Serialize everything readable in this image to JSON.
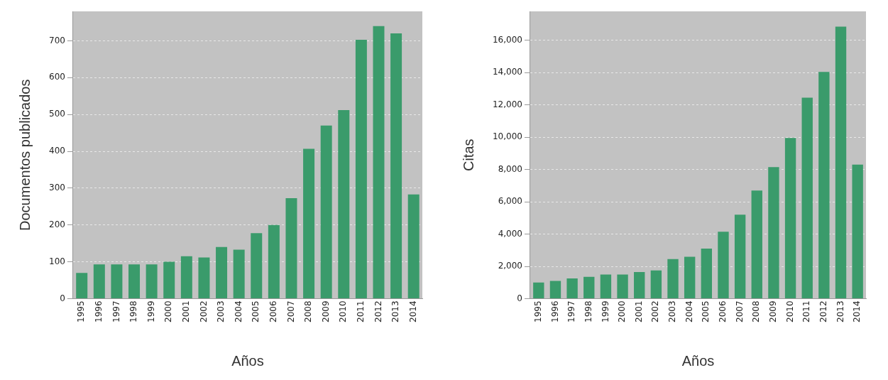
{
  "chart_data": [
    {
      "type": "bar",
      "xlabel": "Años",
      "ylabel": "Documentos publicados",
      "categories": [
        "1995",
        "1996",
        "1997",
        "1998",
        "1999",
        "2000",
        "2001",
        "2002",
        "2003",
        "2004",
        "2005",
        "2006",
        "2007",
        "2008",
        "2009",
        "2010",
        "2011",
        "2012",
        "2013",
        "2014"
      ],
      "values": [
        70,
        93,
        93,
        93,
        93,
        100,
        115,
        112,
        140,
        133,
        178,
        200,
        273,
        407,
        470,
        512,
        703,
        740,
        720,
        283
      ],
      "color": "#3a9b6b",
      "ylim": [
        0,
        780
      ],
      "yticks": [
        0,
        100,
        200,
        300,
        400,
        500,
        600,
        700
      ],
      "grid": "y"
    },
    {
      "type": "bar",
      "xlabel": "Años",
      "ylabel": "Citas",
      "categories": [
        "1995",
        "1996",
        "1997",
        "1998",
        "1999",
        "2000",
        "2001",
        "2002",
        "2003",
        "2004",
        "2005",
        "2006",
        "2007",
        "2008",
        "2009",
        "2010",
        "2011",
        "2012",
        "2013",
        "2014"
      ],
      "values": [
        1000,
        1100,
        1250,
        1350,
        1500,
        1500,
        1650,
        1750,
        2450,
        2600,
        3100,
        4150,
        5200,
        6700,
        8150,
        9950,
        12450,
        14050,
        16850,
        8300
      ],
      "color": "#3a9b6b",
      "ylim": [
        0,
        17800
      ],
      "yticks": [
        0,
        {
          "value": 2000,
          "label": "2,000"
        },
        {
          "value": 4000,
          "label": "4,000"
        },
        {
          "value": 6000,
          "label": "6,000"
        },
        {
          "value": 8000,
          "label": "8,000"
        },
        {
          "value": 10000,
          "label": "10,000"
        },
        {
          "value": 12000,
          "label": "12,000"
        },
        {
          "value": 14000,
          "label": "14,000"
        },
        {
          "value": 16000,
          "label": "16,000"
        }
      ],
      "grid": "y"
    }
  ]
}
